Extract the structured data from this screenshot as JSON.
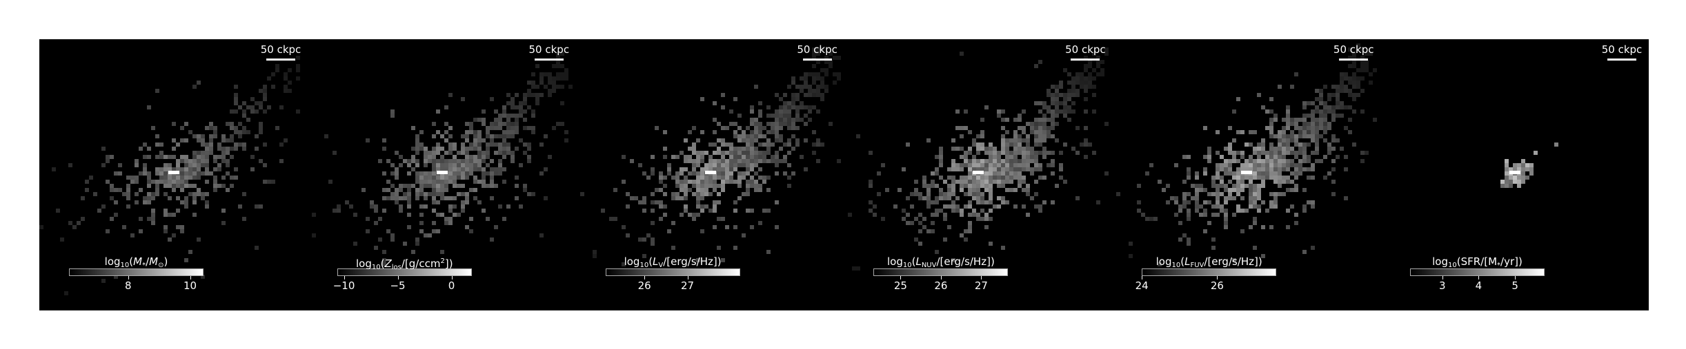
{
  "scale_bar_text": "50 ckpc",
  "panels": [
    {
      "label_parts": [
        [
          "n",
          "log"
        ],
        [
          "sub",
          "10"
        ],
        [
          "n",
          "("
        ],
        [
          "i",
          "M"
        ],
        [
          "sub",
          "*"
        ],
        [
          "n",
          "/"
        ],
        [
          "i",
          "M"
        ],
        [
          "sub",
          "⊙"
        ],
        [
          "n",
          ")"
        ]
      ],
      "ticks": [
        {
          "label": "8",
          "frac": 0.44
        },
        {
          "label": "10",
          "frac": 0.9
        }
      ],
      "intensity": 0.55,
      "spread": 0.55
    },
    {
      "label_parts": [
        [
          "n",
          "log"
        ],
        [
          "sub",
          "10"
        ],
        [
          "n",
          "("
        ],
        [
          "i",
          "Z"
        ],
        [
          "sub",
          "los"
        ],
        [
          "n",
          "/[g/ccm"
        ],
        [
          "sup",
          "2"
        ],
        [
          "n",
          "])"
        ]
      ],
      "ticks": [
        {
          "label": "−10",
          "frac": 0.05
        },
        {
          "label": "−5",
          "frac": 0.45
        },
        {
          "label": "0",
          "frac": 0.85
        }
      ],
      "intensity": 0.6,
      "spread": 0.85
    },
    {
      "label_parts": [
        [
          "n",
          "log"
        ],
        [
          "sub",
          "10"
        ],
        [
          "n",
          "("
        ],
        [
          "i",
          "L"
        ],
        [
          "sub",
          "V"
        ],
        [
          "n",
          "/[erg/s/Hz])"
        ]
      ],
      "ticks": [
        {
          "label": "26",
          "frac": 0.29
        },
        {
          "label": "27",
          "frac": 0.61
        }
      ],
      "intensity": 0.7,
      "spread": 0.9
    },
    {
      "label_parts": [
        [
          "n",
          "log"
        ],
        [
          "sub",
          "10"
        ],
        [
          "n",
          "("
        ],
        [
          "i",
          "L"
        ],
        [
          "sub",
          "NUV"
        ],
        [
          "n",
          "/[erg/s/Hz])"
        ]
      ],
      "ticks": [
        {
          "label": "25",
          "frac": 0.2
        },
        {
          "label": "26",
          "frac": 0.5
        },
        {
          "label": "27",
          "frac": 0.8
        }
      ],
      "intensity": 0.75,
      "spread": 1.0
    },
    {
      "label_parts": [
        [
          "n",
          "log"
        ],
        [
          "sub",
          "10"
        ],
        [
          "n",
          "("
        ],
        [
          "i",
          "L"
        ],
        [
          "sub",
          "FUV"
        ],
        [
          "n",
          "/[erg/s/Hz])"
        ]
      ],
      "ticks": [
        {
          "label": "24",
          "frac": 0.0
        },
        {
          "label": "26",
          "frac": 0.56
        }
      ],
      "intensity": 0.8,
      "spread": 1.0
    },
    {
      "label_parts": [
        [
          "n",
          "log"
        ],
        [
          "sub",
          "10"
        ],
        [
          "n",
          "(SFR/[M"
        ],
        [
          "sub",
          "*"
        ],
        [
          "n",
          "/yr])"
        ]
      ],
      "ticks": [
        {
          "label": "3",
          "frac": 0.24
        },
        {
          "label": "4",
          "frac": 0.51
        },
        {
          "label": "5",
          "frac": 0.78
        }
      ],
      "intensity": 0.9,
      "spread": 0.08
    }
  ]
}
